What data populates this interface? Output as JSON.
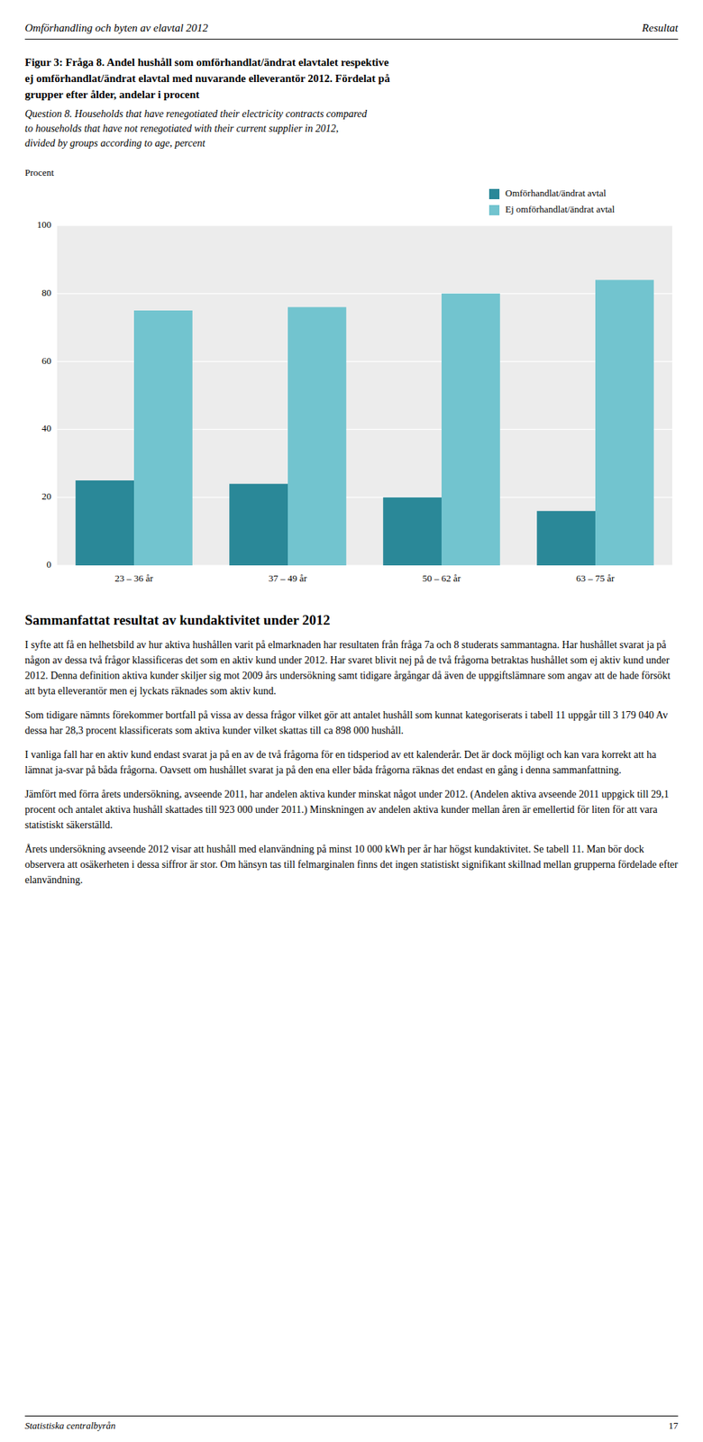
{
  "header_title": "Omförhandling och byten av elavtal 2012",
  "header_right": "Resultat",
  "caption_bold": [
    "Figur 3: Fråga 8. Andel hushåll som omförhandlat/ändrat elavtalet respektive",
    "ej omförhandlat/ändrat elavtal med nuvarande elleverantör 2012. Fördelat på",
    "grupper efter ålder, andelar i procent"
  ],
  "caption_italic": [
    "Question 8. Households that have renegotiated their electricity contracts compared",
    "to households that have not renegotiated with their current supplier in 2012,",
    "divided by groups according to age, percent"
  ],
  "chart_data": {
    "type": "bar",
    "ylabel": "Procent",
    "categories": [
      "23 – 36 år",
      "37 – 49 år",
      "50 – 62 år",
      "63 – 75 år"
    ],
    "series": [
      {
        "name": "Omförhandlat/ändrat avtal",
        "color": "#2a8898",
        "values": [
          25,
          24,
          20,
          16
        ]
      },
      {
        "name": "Ej omförhandlat/ändrat avtal",
        "color": "#72c4cf",
        "values": [
          75,
          76,
          80,
          84
        ]
      }
    ],
    "ylim": [
      0,
      100
    ],
    "yticks": [
      0,
      20,
      40,
      60,
      80,
      100
    ],
    "grid": true,
    "legend": "upper right"
  },
  "section_title": "Sammanfattat resultat av kundaktivitet under 2012",
  "body_paragraphs": [
    "I syfte att få en helhetsbild av hur aktiva hushållen varit på elmarknaden har resultaten från fråga 7a och 8 studerats sammantagna. Har hushållet svarat ja på någon av dessa två frågor klassificeras det som en aktiv kund under 2012. Har svaret blivit nej på de två frågorna betraktas hushållet som ej aktiv kund under 2012. Denna definition aktiva kunder skiljer sig mot 2009 års undersökning samt tidigare årgångar då även de uppgiftslämnare som angav att de hade försökt att byta elleverantör men ej lyckats räknades som aktiv kund.",
    "Som tidigare nämnts förekommer bortfall på vissa av dessa frågor vilket gör att antalet hushåll som kunnat kategoriserats i tabell 11 uppgår till 3 179 040 Av dessa har 28,3 procent klassificerats som aktiva kunder vilket skattas till ca 898 000 hushåll.",
    "I vanliga fall har en aktiv kund endast svarat ja på en av de två frågorna för en tidsperiod av ett kalenderår. Det är dock möjligt och kan vara korrekt att ha lämnat ja-svar på båda frågorna. Oavsett om hushållet svarat ja på den ena eller båda frågorna räknas det endast en gång i denna sammanfattning.",
    "Jämfört med förra årets undersökning, avseende 2011, har andelen aktiva kunder minskat något under 2012. (Andelen aktiva avseende 2011 uppgick till 29,1 procent och antalet aktiva hushåll skattades till 923 000 under 2011.) Minskningen av andelen aktiva kunder mellan åren är emellertid för liten för att vara statistiskt säkerställd.",
    "Årets undersökning avseende 2012 visar att hushåll med elanvändning på minst 10 000 kWh per år har högst kundaktivitet. Se tabell 11. Man bör dock observera att osäkerheten i dessa siffror är stor. Om hänsyn tas till felmarginalen finns det ingen statistiskt signifikant skillnad mellan grupperna fördelade efter elanvändning."
  ],
  "footer_left": "Statistiska centralbyrån",
  "footer_right": "17"
}
